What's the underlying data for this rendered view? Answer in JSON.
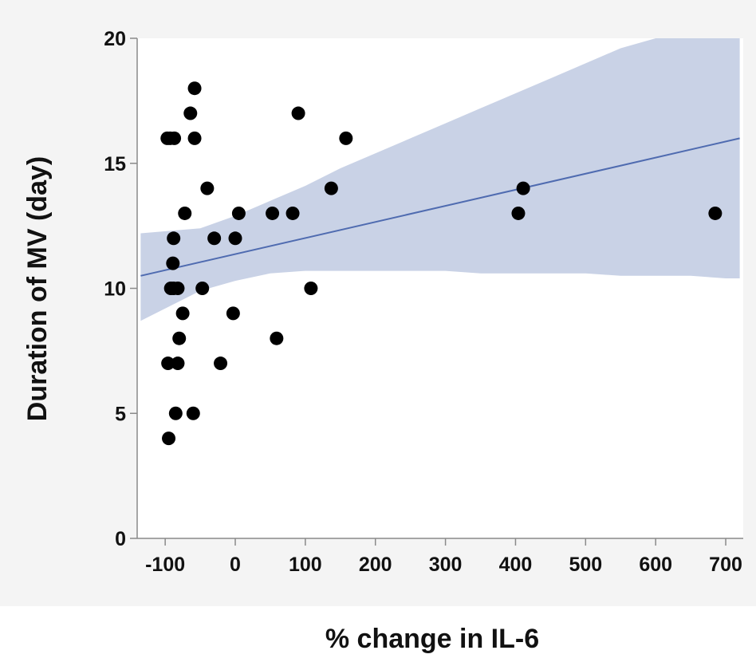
{
  "chart_data": {
    "type": "scatter",
    "title": "",
    "xlabel": "% change in IL-6",
    "ylabel": "Duration of MV (day)",
    "xlim": [
      -140,
      725
    ],
    "ylim": [
      0,
      20
    ],
    "x_ticks": [
      -100,
      0,
      100,
      200,
      300,
      400,
      500,
      600,
      700
    ],
    "y_ticks": [
      0,
      5,
      10,
      15,
      20
    ],
    "grid": false,
    "legend": "none",
    "colors": {
      "panel_background": "#f4f4f4",
      "plot_background": "#ffffff",
      "points": "#000000",
      "fit_line": "#4f6bb0",
      "confidence_band": "#c9d2e6"
    },
    "points": [
      {
        "x": -97,
        "y": 16
      },
      {
        "x": -93,
        "y": 16
      },
      {
        "x": -87,
        "y": 16
      },
      {
        "x": -58,
        "y": 18
      },
      {
        "x": -64,
        "y": 17
      },
      {
        "x": -58,
        "y": 16
      },
      {
        "x": 90,
        "y": 17
      },
      {
        "x": 158,
        "y": 16
      },
      {
        "x": -40,
        "y": 14
      },
      {
        "x": 137,
        "y": 14
      },
      {
        "x": 411,
        "y": 14
      },
      {
        "x": -72,
        "y": 13
      },
      {
        "x": 5,
        "y": 13
      },
      {
        "x": 53,
        "y": 13
      },
      {
        "x": 82,
        "y": 13
      },
      {
        "x": 404,
        "y": 13
      },
      {
        "x": 685,
        "y": 13
      },
      {
        "x": -88,
        "y": 12
      },
      {
        "x": -30,
        "y": 12
      },
      {
        "x": 0,
        "y": 12
      },
      {
        "x": -89,
        "y": 11
      },
      {
        "x": -92,
        "y": 10
      },
      {
        "x": -88,
        "y": 10
      },
      {
        "x": -82,
        "y": 10
      },
      {
        "x": -47,
        "y": 10
      },
      {
        "x": 108,
        "y": 10
      },
      {
        "x": -75,
        "y": 9
      },
      {
        "x": -3,
        "y": 9
      },
      {
        "x": -80,
        "y": 8
      },
      {
        "x": 59,
        "y": 8
      },
      {
        "x": -96,
        "y": 7
      },
      {
        "x": -82,
        "y": 7
      },
      {
        "x": -21,
        "y": 7
      },
      {
        "x": -85,
        "y": 5
      },
      {
        "x": -60,
        "y": 5
      },
      {
        "x": -95,
        "y": 4
      }
    ],
    "fit_line": {
      "x": [
        -135,
        720
      ],
      "y": [
        10.5,
        16.0
      ]
    },
    "confidence_band": {
      "x": [
        -135,
        -50,
        0,
        50,
        100,
        150,
        200,
        250,
        300,
        350,
        400,
        450,
        500,
        550,
        600,
        650,
        700,
        720
      ],
      "upper": [
        12.2,
        12.4,
        12.9,
        13.5,
        14.1,
        14.8,
        15.4,
        16.0,
        16.6,
        17.2,
        17.8,
        18.4,
        19.0,
        19.6,
        20.0,
        20.0,
        20.0,
        20.0
      ],
      "lower": [
        8.7,
        9.9,
        10.3,
        10.6,
        10.7,
        10.7,
        10.7,
        10.7,
        10.7,
        10.6,
        10.6,
        10.6,
        10.6,
        10.5,
        10.5,
        10.5,
        10.4,
        10.4
      ]
    }
  }
}
